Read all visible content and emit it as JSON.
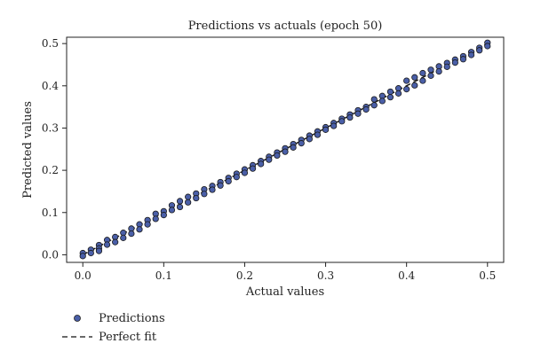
{
  "chart_data": {
    "type": "scatter",
    "title": "Predictions vs actuals (epoch 50)",
    "xlabel": "Actual values",
    "ylabel": "Predicted values",
    "xlim": [
      -0.02,
      0.52
    ],
    "ylim": [
      -0.018,
      0.515
    ],
    "xticks": [
      0.0,
      0.1,
      0.2,
      0.3,
      0.4,
      0.5
    ],
    "xtick_labels": [
      "0.0",
      "0.1",
      "0.2",
      "0.3",
      "0.4",
      "0.5"
    ],
    "yticks": [
      0.0,
      0.1,
      0.2,
      0.3,
      0.4,
      0.5
    ],
    "ytick_labels": [
      "0.0",
      "0.1",
      "0.2",
      "0.3",
      "0.4",
      "0.5"
    ],
    "grid": false,
    "legend": {
      "placement": "below-left"
    },
    "colors": {
      "points": "#4a5fa8",
      "point_edge": "#1a1a1a",
      "line": "#111111"
    },
    "series": [
      {
        "name": "Predictions",
        "kind": "scatter",
        "x": [
          0.0,
          0.0,
          0.01,
          0.01,
          0.02,
          0.02,
          0.02,
          0.03,
          0.03,
          0.04,
          0.04,
          0.05,
          0.05,
          0.06,
          0.06,
          0.07,
          0.07,
          0.08,
          0.08,
          0.09,
          0.09,
          0.1,
          0.1,
          0.11,
          0.11,
          0.12,
          0.12,
          0.13,
          0.13,
          0.14,
          0.14,
          0.15,
          0.15,
          0.16,
          0.16,
          0.17,
          0.17,
          0.18,
          0.18,
          0.19,
          0.19,
          0.2,
          0.2,
          0.21,
          0.21,
          0.22,
          0.22,
          0.23,
          0.23,
          0.24,
          0.24,
          0.25,
          0.25,
          0.26,
          0.26,
          0.27,
          0.27,
          0.28,
          0.28,
          0.29,
          0.29,
          0.3,
          0.3,
          0.31,
          0.31,
          0.32,
          0.32,
          0.33,
          0.33,
          0.34,
          0.34,
          0.35,
          0.35,
          0.36,
          0.36,
          0.37,
          0.37,
          0.38,
          0.38,
          0.39,
          0.39,
          0.4,
          0.4,
          0.41,
          0.41,
          0.42,
          0.42,
          0.43,
          0.43,
          0.44,
          0.44,
          0.45,
          0.45,
          0.46,
          0.46,
          0.47,
          0.47,
          0.48,
          0.48,
          0.49,
          0.49,
          0.5,
          0.5
        ],
        "y": [
          0.004,
          -0.003,
          0.012,
          0.004,
          0.023,
          0.015,
          0.009,
          0.035,
          0.024,
          0.042,
          0.03,
          0.052,
          0.04,
          0.062,
          0.05,
          0.072,
          0.06,
          0.082,
          0.072,
          0.097,
          0.085,
          0.103,
          0.094,
          0.117,
          0.106,
          0.127,
          0.113,
          0.137,
          0.124,
          0.145,
          0.134,
          0.155,
          0.144,
          0.163,
          0.154,
          0.172,
          0.164,
          0.182,
          0.174,
          0.192,
          0.184,
          0.202,
          0.194,
          0.212,
          0.204,
          0.222,
          0.215,
          0.232,
          0.225,
          0.242,
          0.235,
          0.252,
          0.244,
          0.262,
          0.254,
          0.272,
          0.264,
          0.282,
          0.274,
          0.292,
          0.284,
          0.302,
          0.296,
          0.312,
          0.305,
          0.322,
          0.316,
          0.332,
          0.325,
          0.342,
          0.334,
          0.35,
          0.344,
          0.368,
          0.354,
          0.376,
          0.364,
          0.386,
          0.373,
          0.394,
          0.382,
          0.412,
          0.392,
          0.42,
          0.401,
          0.43,
          0.412,
          0.438,
          0.424,
          0.446,
          0.434,
          0.454,
          0.445,
          0.462,
          0.455,
          0.47,
          0.463,
          0.48,
          0.473,
          0.49,
          0.484,
          0.502,
          0.494
        ]
      },
      {
        "name": "Perfect fit",
        "kind": "line",
        "dashed": true,
        "x": [
          0.0,
          0.5
        ],
        "y": [
          0.0,
          0.5
        ]
      }
    ]
  }
}
